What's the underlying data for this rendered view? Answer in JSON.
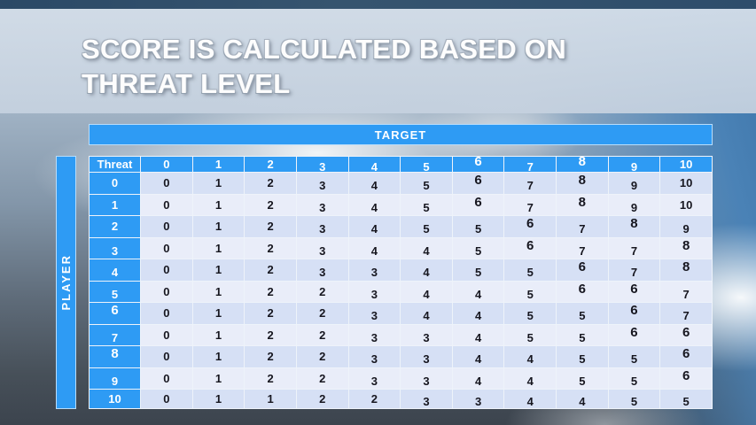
{
  "slide": {
    "title": "SCORE IS CALCULATED BASED ON THREAT LEVEL",
    "title_line1": "SCORE IS CALCULATED BASED ON",
    "title_line2": "THREAT LEVEL"
  },
  "matrix": {
    "target_label": "TARGET",
    "player_label": "PLAYER",
    "corner_label": "Threat",
    "column_headers": [
      "0",
      "1",
      "2",
      "3",
      "4",
      "5",
      "6",
      "7",
      "8",
      "9",
      "10"
    ],
    "row_headers": [
      "0",
      "1",
      "2",
      "3",
      "4",
      "5",
      "6",
      "7",
      "8",
      "9",
      "10"
    ],
    "rows": [
      [
        "0",
        "1",
        "2",
        "3",
        "4",
        "5",
        "6",
        "7",
        "8",
        "9",
        "10"
      ],
      [
        "0",
        "1",
        "2",
        "3",
        "4",
        "5",
        "6",
        "7",
        "8",
        "9",
        "10"
      ],
      [
        "0",
        "1",
        "2",
        "3",
        "4",
        "5",
        "5",
        "6",
        "7",
        "8",
        "9"
      ],
      [
        "0",
        "1",
        "2",
        "3",
        "4",
        "4",
        "5",
        "6",
        "7",
        "7",
        "8"
      ],
      [
        "0",
        "1",
        "2",
        "3",
        "3",
        "4",
        "5",
        "5",
        "6",
        "7",
        "8"
      ],
      [
        "0",
        "1",
        "2",
        "2",
        "3",
        "4",
        "4",
        "5",
        "6",
        "6",
        "7"
      ],
      [
        "0",
        "1",
        "2",
        "2",
        "3",
        "4",
        "4",
        "5",
        "5",
        "6",
        "7"
      ],
      [
        "0",
        "1",
        "2",
        "2",
        "3",
        "3",
        "4",
        "5",
        "5",
        "6",
        "6"
      ],
      [
        "0",
        "1",
        "2",
        "2",
        "3",
        "3",
        "4",
        "4",
        "5",
        "5",
        "6"
      ],
      [
        "0",
        "1",
        "2",
        "2",
        "3",
        "3",
        "4",
        "4",
        "5",
        "5",
        "6"
      ],
      [
        "0",
        "1",
        "1",
        "2",
        "2",
        "3",
        "3",
        "4",
        "4",
        "5",
        "5"
      ]
    ]
  },
  "colors": {
    "accent_blue": "#2e9bf4",
    "row_shade_dark": "#d6e0f5",
    "row_shade_light": "#e9edf9",
    "banner": "#cdd8e5",
    "top_strip": "#30506c",
    "cell_text": "#16161f",
    "header_text": "#ffffff"
  }
}
